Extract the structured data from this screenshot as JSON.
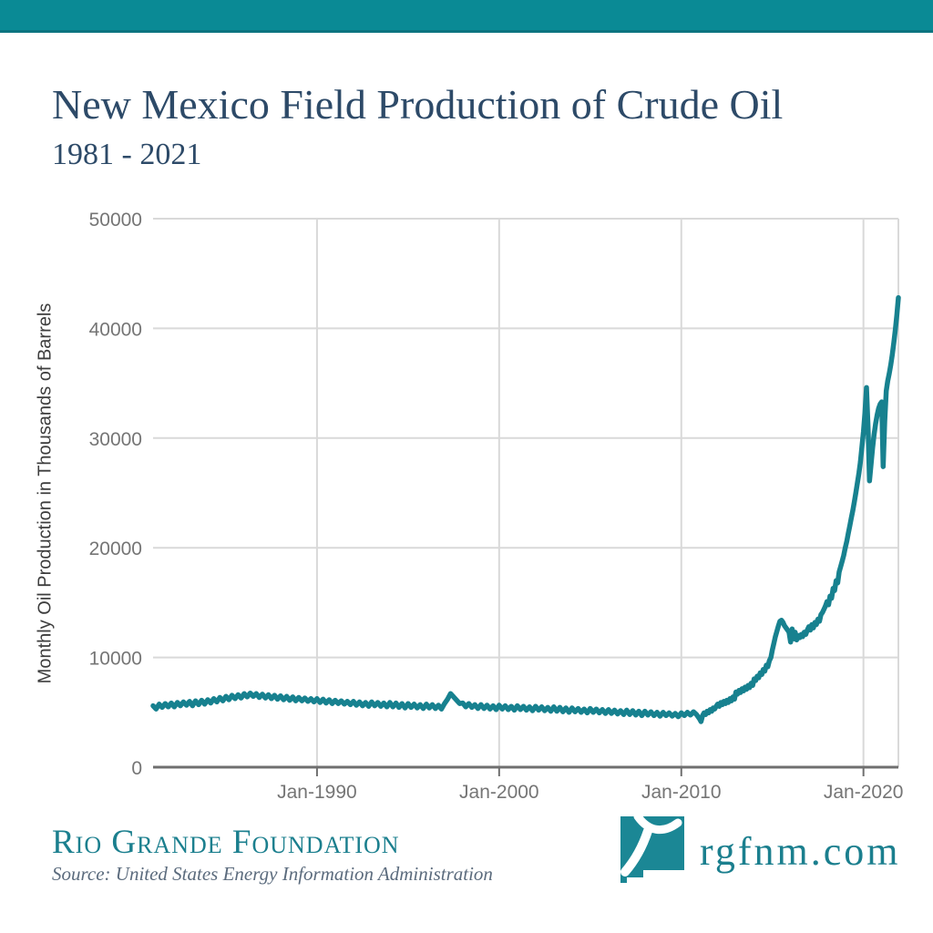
{
  "title": {
    "main": "New Mexico Field Production of Crude Oil",
    "sub": "1981 - 2021"
  },
  "colors": {
    "brand_teal": "#0a8a95",
    "line_teal": "#17818f",
    "title_navy": "#2d4a68",
    "tick_gray": "#757575",
    "grid_gray": "#d9d9d9",
    "axis_gray": "#6f6f6f",
    "source_gray": "#5b6b7d"
  },
  "chart_data": {
    "type": "line",
    "title": "New Mexico Field Production of Crude Oil 1981 - 2021",
    "xlabel": "",
    "ylabel": "Monthly Oil Production in Thousands of Barrels",
    "x_range": [
      1981,
      2021.917
    ],
    "ylim": [
      0,
      50000
    ],
    "grid": true,
    "legend": "none",
    "x_ticks": [
      {
        "v": 1990,
        "label": "Jan-1990"
      },
      {
        "v": 2000,
        "label": "Jan-2000"
      },
      {
        "v": 2010,
        "label": "Jan-2010"
      },
      {
        "v": 2020,
        "label": "Jan-2020"
      }
    ],
    "y_ticks": [
      {
        "v": 0,
        "label": "0"
      },
      {
        "v": 10000,
        "label": "10000"
      },
      {
        "v": 20000,
        "label": "20000"
      },
      {
        "v": 30000,
        "label": "30000"
      },
      {
        "v": 40000,
        "label": "40000"
      },
      {
        "v": 50000,
        "label": "50000"
      }
    ],
    "series": [
      {
        "name": "NM monthly crude oil production (thousands of barrels)",
        "segments": [
          {
            "start_year": 1981,
            "points_per_year": 6,
            "values": [
              5600,
              5300,
              5750,
              5450,
              5800,
              5500,
              5850,
              5500,
              5900,
              5600,
              5950,
              5650,
              6000,
              5600,
              6050,
              5700,
              6100,
              5750,
              6150,
              5850,
              6250,
              5950,
              6350,
              6050,
              6450,
              6150,
              6550,
              6250,
              6600,
              6300,
              6700,
              6400,
              6750,
              6450,
              6700,
              6350,
              6650,
              6300,
              6600,
              6250,
              6550,
              6200,
              6500,
              6150,
              6450,
              6100,
              6400,
              6050,
              6350,
              6050,
              6300,
              6000,
              6250,
              5950,
              6250,
              5900,
              6200,
              5850,
              6150,
              5800,
              6100,
              5800,
              6050,
              5750,
              6000,
              5700,
              6000,
              5650,
              5950,
              5600,
              5900,
              5550,
              5950,
              5600,
              5900,
              5550,
              5850,
              5500,
              5900,
              5500,
              5850,
              5450,
              5800,
              5400,
              5800,
              5450,
              5750,
              5400,
              5700,
              5350,
              5750,
              5400,
              5700,
              5350,
              5650,
              5300,
              5800,
              6200,
              6700,
              6400,
              6100,
              5800,
              5850,
              5500,
              5800,
              5450,
              5700,
              5350,
              5700,
              5350,
              5650,
              5300,
              5600,
              5250,
              5650,
              5300,
              5600,
              5250,
              5550,
              5200,
              5600,
              5250,
              5550,
              5200,
              5500,
              5150,
              5550,
              5200,
              5500,
              5150,
              5450,
              5100,
              5500,
              5100,
              5450,
              5050,
              5400,
              5000,
              5400,
              5050,
              5350,
              5000,
              5300,
              4950,
              5350,
              5000,
              5300,
              4950,
              5250,
              4900,
              5250,
              4900,
              5200,
              4850,
              5150,
              4800,
              5200,
              4800,
              5150,
              4750,
              5100,
              4700,
              5100,
              4750,
              5050,
              4700,
              5000,
              4650,
              5000,
              4700,
              4950,
              4650,
              4900,
              4600,
              4950,
              4700,
              5000,
              4750,
              5050,
              4800
            ]
          },
          {
            "start_year": 2011,
            "points_per_year": 12,
            "values": [
              4400,
              4150,
              4700,
              4950,
              4800,
              5100,
              4950,
              5250,
              5100,
              5400,
              5300,
              5550,
              5750,
              5550,
              5900,
              5700,
              6000,
              5800,
              6100,
              5900,
              6250,
              6050,
              6400,
              6200,
              6850,
              6650,
              7000,
              6800,
              7150,
              6950,
              7300,
              7100,
              7450,
              7250,
              7650,
              7450,
              8050,
              7900,
              8300,
              8150,
              8600,
              8450,
              8900,
              8750,
              9300,
              9150,
              9700,
              10000,
              10700,
              11300,
              11900,
              12400,
              12900,
              13300,
              13400,
              13200,
              12900,
              12700,
              12500,
              12300,
              11400,
              12600,
              11700,
              12300,
              11600,
              12000,
              11800,
              12100,
              11900,
              12300,
              12100,
              12500,
              12800,
              12500,
              13000,
              12700,
              13200,
              13000,
              13500,
              13300,
              13900,
              14100,
              14400,
              14700,
              15100,
              14800,
              15600,
              15400,
              16300,
              16100,
              17000,
              16800,
              17800,
              18300,
              18800,
              19300,
              20000,
              20600,
              21300,
              22000,
              22700,
              23400,
              24200,
              25000,
              25900,
              26800,
              27800,
              29200,
              30600,
              32300,
              34600,
              31000,
              26100,
              27600,
              29100,
              30300,
              31300,
              32100,
              32700,
              33100,
              33300,
              27400,
              31500,
              34300,
              35200,
              35900,
              36700,
              37600,
              38700,
              39900,
              41200,
              42800
            ]
          }
        ]
      }
    ]
  },
  "footer": {
    "org": "Rio Grande Foundation",
    "source": "Source: United States Energy Information Administration",
    "site": "rgfnm.com",
    "logo": "new-mexico-state-with-rio-grande-river"
  }
}
